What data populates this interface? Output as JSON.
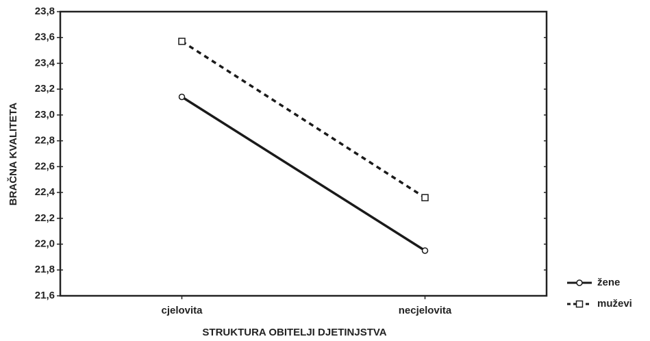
{
  "chart_data": {
    "type": "line",
    "xlabel": "STRUKTURA OBITELJI DJETINJSTVA",
    "ylabel": "BRAČNA KVALITETA",
    "categories": [
      "cjelovita",
      "necjelovita"
    ],
    "series": [
      {
        "name": "žene",
        "color": "#1a1a1a",
        "dash": "solid",
        "marker": "circle",
        "values": [
          23.14,
          21.95
        ]
      },
      {
        "name": "muževi",
        "color": "#1a1a1a",
        "dash": "dashed",
        "marker": "square",
        "values": [
          23.57,
          22.36
        ]
      }
    ],
    "ylim": [
      21.6,
      23.8
    ],
    "yticks": [
      {
        "value": 21.6,
        "label": "21,6"
      },
      {
        "value": 21.8,
        "label": "21,8"
      },
      {
        "value": 22.0,
        "label": "22,0"
      },
      {
        "value": 22.2,
        "label": "22,2"
      },
      {
        "value": 22.4,
        "label": "22,4"
      },
      {
        "value": 22.6,
        "label": "22,6"
      },
      {
        "value": 22.8,
        "label": "22,8"
      },
      {
        "value": 23.0,
        "label": "23,0"
      },
      {
        "value": 23.2,
        "label": "23,2"
      },
      {
        "value": 23.4,
        "label": "23,4"
      },
      {
        "value": 23.6,
        "label": "23,6"
      },
      {
        "value": 23.8,
        "label": "23,8"
      }
    ],
    "legend": "bottom-right",
    "grid": false
  }
}
